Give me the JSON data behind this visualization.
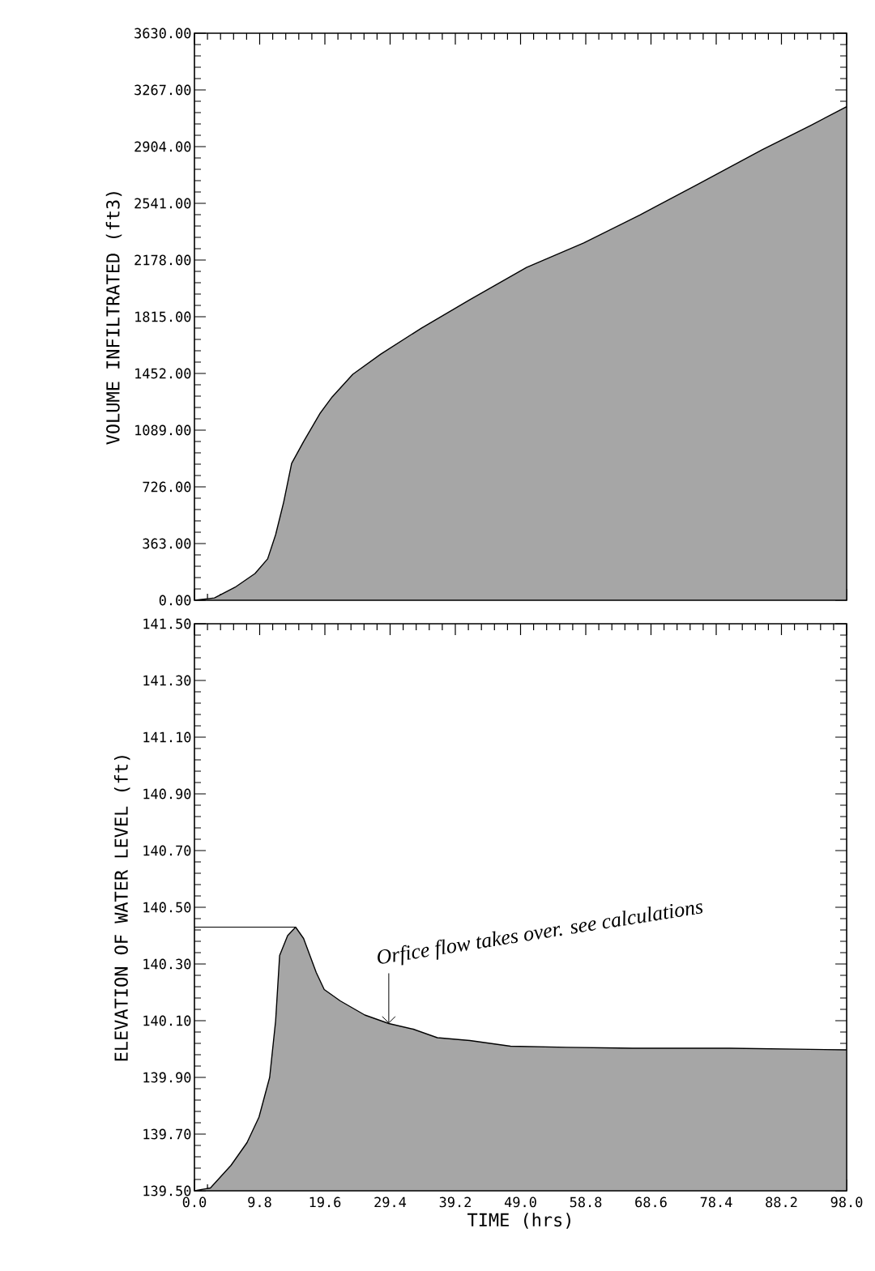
{
  "chart_data": [
    {
      "type": "area",
      "ylabel": "VOLUME INFILTRATED (ft3)",
      "tick_labels": "y",
      "marker": "none",
      "line_style": "solid",
      "xlim": [
        0,
        98
      ],
      "ylim": [
        0,
        3630
      ],
      "xticks": [
        0,
        9.8,
        19.6,
        29.4,
        39.2,
        49,
        58.8,
        68.6,
        78.4,
        88.2,
        98
      ],
      "yticks": [
        {
          "value": 0,
          "label": "0.00"
        },
        {
          "value": 363,
          "label": "363.00"
        },
        {
          "value": 726,
          "label": "726.00"
        },
        {
          "value": 1089,
          "label": "1089.00"
        },
        {
          "value": 1452,
          "label": "1452.00"
        },
        {
          "value": 1815,
          "label": "1815.00"
        },
        {
          "value": 2178,
          "label": "2178.00"
        },
        {
          "value": 2541,
          "label": "2541.00"
        },
        {
          "value": 2904,
          "label": "2904.00"
        },
        {
          "value": 3267,
          "label": "3267.00"
        },
        {
          "value": 3630,
          "label": "3630.00"
        }
      ],
      "series": [
        {
          "color": "#a6a6a6",
          "x": [
            0,
            3.0,
            6.1,
            9.1,
            11.0,
            12.2,
            13.4,
            14.6,
            16.4,
            18.9,
            20.7,
            23.8,
            28.0,
            34.1,
            41.4,
            49.9,
            58.5,
            67.0,
            75.5,
            85.3,
            92.6,
            98.0
          ],
          "values": [
            0,
            15,
            83,
            171,
            265,
            420,
            627,
            876,
            1016,
            1198,
            1302,
            1447,
            1576,
            1742,
            1924,
            2131,
            2287,
            2468,
            2660,
            2884,
            3040,
            3160
          ]
        }
      ]
    },
    {
      "type": "area",
      "xlabel": "TIME (hrs)",
      "ylabel": "ELEVATION OF WATER LEVEL (ft)",
      "marker": "none",
      "line_style": "solid",
      "xlim": [
        0,
        98
      ],
      "ylim": [
        139.5,
        141.5
      ],
      "xticks": [
        {
          "value": 0,
          "label": "0.0"
        },
        {
          "value": 9.8,
          "label": "9.8"
        },
        {
          "value": 19.6,
          "label": "19.6"
        },
        {
          "value": 29.4,
          "label": "29.4"
        },
        {
          "value": 39.2,
          "label": "39.2"
        },
        {
          "value": 49,
          "label": "49.0"
        },
        {
          "value": 58.8,
          "label": "58.8"
        },
        {
          "value": 68.6,
          "label": "68.6"
        },
        {
          "value": 78.4,
          "label": "78.4"
        },
        {
          "value": 88.2,
          "label": "88.2"
        },
        {
          "value": 98,
          "label": "98.0"
        }
      ],
      "yticks": [
        {
          "value": 139.5,
          "label": "139.50"
        },
        {
          "value": 139.7,
          "label": "139.70"
        },
        {
          "value": 139.9,
          "label": "139.90"
        },
        {
          "value": 140.1,
          "label": "140.10"
        },
        {
          "value": 140.3,
          "label": "140.30"
        },
        {
          "value": 140.5,
          "label": "140.50"
        },
        {
          "value": 140.7,
          "label": "140.70"
        },
        {
          "value": 140.9,
          "label": "140.90"
        },
        {
          "value": 141.1,
          "label": "141.10"
        },
        {
          "value": 141.3,
          "label": "141.30"
        },
        {
          "value": 141.5,
          "label": "141.50"
        }
      ],
      "annotations": [
        {
          "text": "Orfice flow takes over. see calculations",
          "x": 29.2,
          "y": 140.09
        }
      ],
      "series": [
        {
          "color": "#a6a6a6",
          "x": [
            0,
            2.4,
            5.5,
            7.9,
            9.7,
            11.3,
            12.2,
            12.8,
            14.0,
            15.2,
            16.4,
            18.3,
            19.5,
            21.9,
            25.6,
            29.2,
            32.9,
            36.5,
            41.4,
            47.5,
            56.0,
            65.8,
            80.4,
            98.0
          ],
          "values": [
            139.5,
            139.51,
            139.59,
            139.67,
            139.76,
            139.9,
            140.1,
            140.33,
            140.4,
            140.43,
            140.39,
            140.27,
            140.21,
            140.17,
            140.12,
            140.09,
            140.07,
            140.04,
            140.03,
            140.01,
            140.006,
            140.003,
            140.003,
            139.997
          ]
        },
        {
          "type": "line",
          "color": "#000000",
          "x": [
            0,
            15.2
          ],
          "values": [
            140.43,
            140.43
          ]
        }
      ]
    }
  ]
}
